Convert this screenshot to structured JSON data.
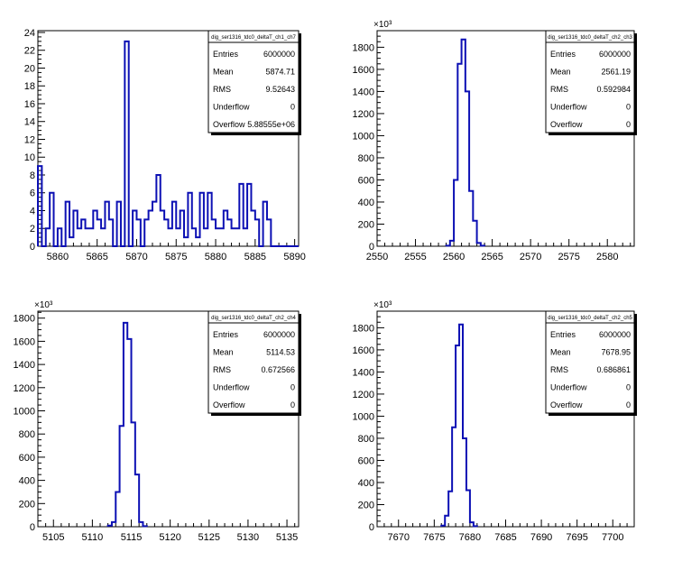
{
  "chart_data": [
    {
      "type": "bar",
      "stats_title": "dig_ser1316_tdc0_deltaT_ch1_ch7",
      "stats": [
        {
          "label": "Entries",
          "value": "6000000"
        },
        {
          "label": "Mean",
          "value": "5874.71"
        },
        {
          "label": "RMS",
          "value": "9.52643"
        },
        {
          "label": "Underflow",
          "value": "0"
        },
        {
          "label": "Overflow",
          "value": "5.88555e+06"
        }
      ],
      "xlim": [
        5857.5,
        5890.5
      ],
      "ylim": [
        0,
        24.2
      ],
      "bin_width": 0.5,
      "x_start": 5857.5,
      "xticks": [
        5860,
        5865,
        5870,
        5875,
        5880,
        5885,
        5890
      ],
      "yticks": [
        0,
        2,
        4,
        6,
        8,
        10,
        12,
        14,
        16,
        18,
        20,
        22,
        24
      ],
      "yscale_label": "",
      "values": [
        9,
        0,
        2,
        6,
        0,
        2,
        0,
        5,
        1,
        4,
        2,
        3,
        2,
        2,
        4,
        3,
        2,
        5,
        3,
        0,
        5,
        0,
        23,
        0,
        4,
        3,
        0,
        3,
        4,
        5,
        8,
        4,
        3,
        2,
        5,
        2,
        4,
        1,
        6,
        2,
        1,
        6,
        2,
        6,
        3,
        2,
        2,
        4,
        3,
        2,
        2,
        7,
        2,
        7,
        4,
        3,
        0,
        5,
        3,
        0,
        0,
        0,
        0,
        0,
        0,
        0
      ]
    },
    {
      "type": "bar",
      "stats_title": "dig_ser1316_tdc0_deltaT_ch2_ch3",
      "stats": [
        {
          "label": "Entries",
          "value": "6000000"
        },
        {
          "label": "Mean",
          "value": "2561.19"
        },
        {
          "label": "RMS",
          "value": "0.592984"
        },
        {
          "label": "Underflow",
          "value": "0"
        },
        {
          "label": "Overflow",
          "value": "0"
        }
      ],
      "xlim": [
        2550,
        2583.5
      ],
      "ylim": [
        0,
        1950
      ],
      "bin_width": 0.5,
      "x_start": 2559,
      "xticks": [
        2550,
        2555,
        2560,
        2565,
        2570,
        2575,
        2580
      ],
      "yticks": [
        0,
        200,
        400,
        600,
        800,
        1000,
        1200,
        1400,
        1600,
        1800
      ],
      "yscale_label": "×10³",
      "values": [
        5,
        50,
        600,
        1650,
        1870,
        1400,
        500,
        230,
        30,
        5
      ]
    },
    {
      "type": "bar",
      "stats_title": "dig_ser1316_tdc0_deltaT_ch2_ch4",
      "stats": [
        {
          "label": "Entries",
          "value": "6000000"
        },
        {
          "label": "Mean",
          "value": "5114.53"
        },
        {
          "label": "RMS",
          "value": "0.672566"
        },
        {
          "label": "Underflow",
          "value": "0"
        },
        {
          "label": "Overflow",
          "value": "0"
        }
      ],
      "xlim": [
        5103,
        5136.5
      ],
      "ylim": [
        0,
        1860
      ],
      "bin_width": 0.5,
      "x_start": 5112,
      "xticks": [
        5105,
        5110,
        5115,
        5120,
        5125,
        5130,
        5135
      ],
      "yticks": [
        0,
        200,
        400,
        600,
        800,
        1000,
        1200,
        1400,
        1600,
        1800
      ],
      "yscale_label": "×10³",
      "values": [
        10,
        40,
        300,
        870,
        1760,
        1620,
        900,
        450,
        40,
        5
      ]
    },
    {
      "type": "bar",
      "stats_title": "dig_ser1316_tdc0_deltaT_ch2_ch5",
      "stats": [
        {
          "label": "Entries",
          "value": "6000000"
        },
        {
          "label": "Mean",
          "value": "7678.95"
        },
        {
          "label": "RMS",
          "value": "0.686861"
        },
        {
          "label": "Underflow",
          "value": "0"
        },
        {
          "label": "Overflow",
          "value": "0"
        }
      ],
      "xlim": [
        7667,
        7703
      ],
      "ylim": [
        0,
        1950
      ],
      "bin_width": 0.5,
      "x_start": 7676,
      "xticks": [
        7670,
        7675,
        7680,
        7685,
        7690,
        7695,
        7700
      ],
      "yticks": [
        0,
        200,
        400,
        600,
        800,
        1000,
        1200,
        1400,
        1600,
        1800
      ],
      "yscale_label": "×10³",
      "values": [
        10,
        100,
        320,
        900,
        1640,
        1830,
        800,
        330,
        40,
        5
      ]
    }
  ],
  "colors": {
    "histogram_line": "#0c10b4",
    "axis": "#000000",
    "background": "#ffffff"
  }
}
